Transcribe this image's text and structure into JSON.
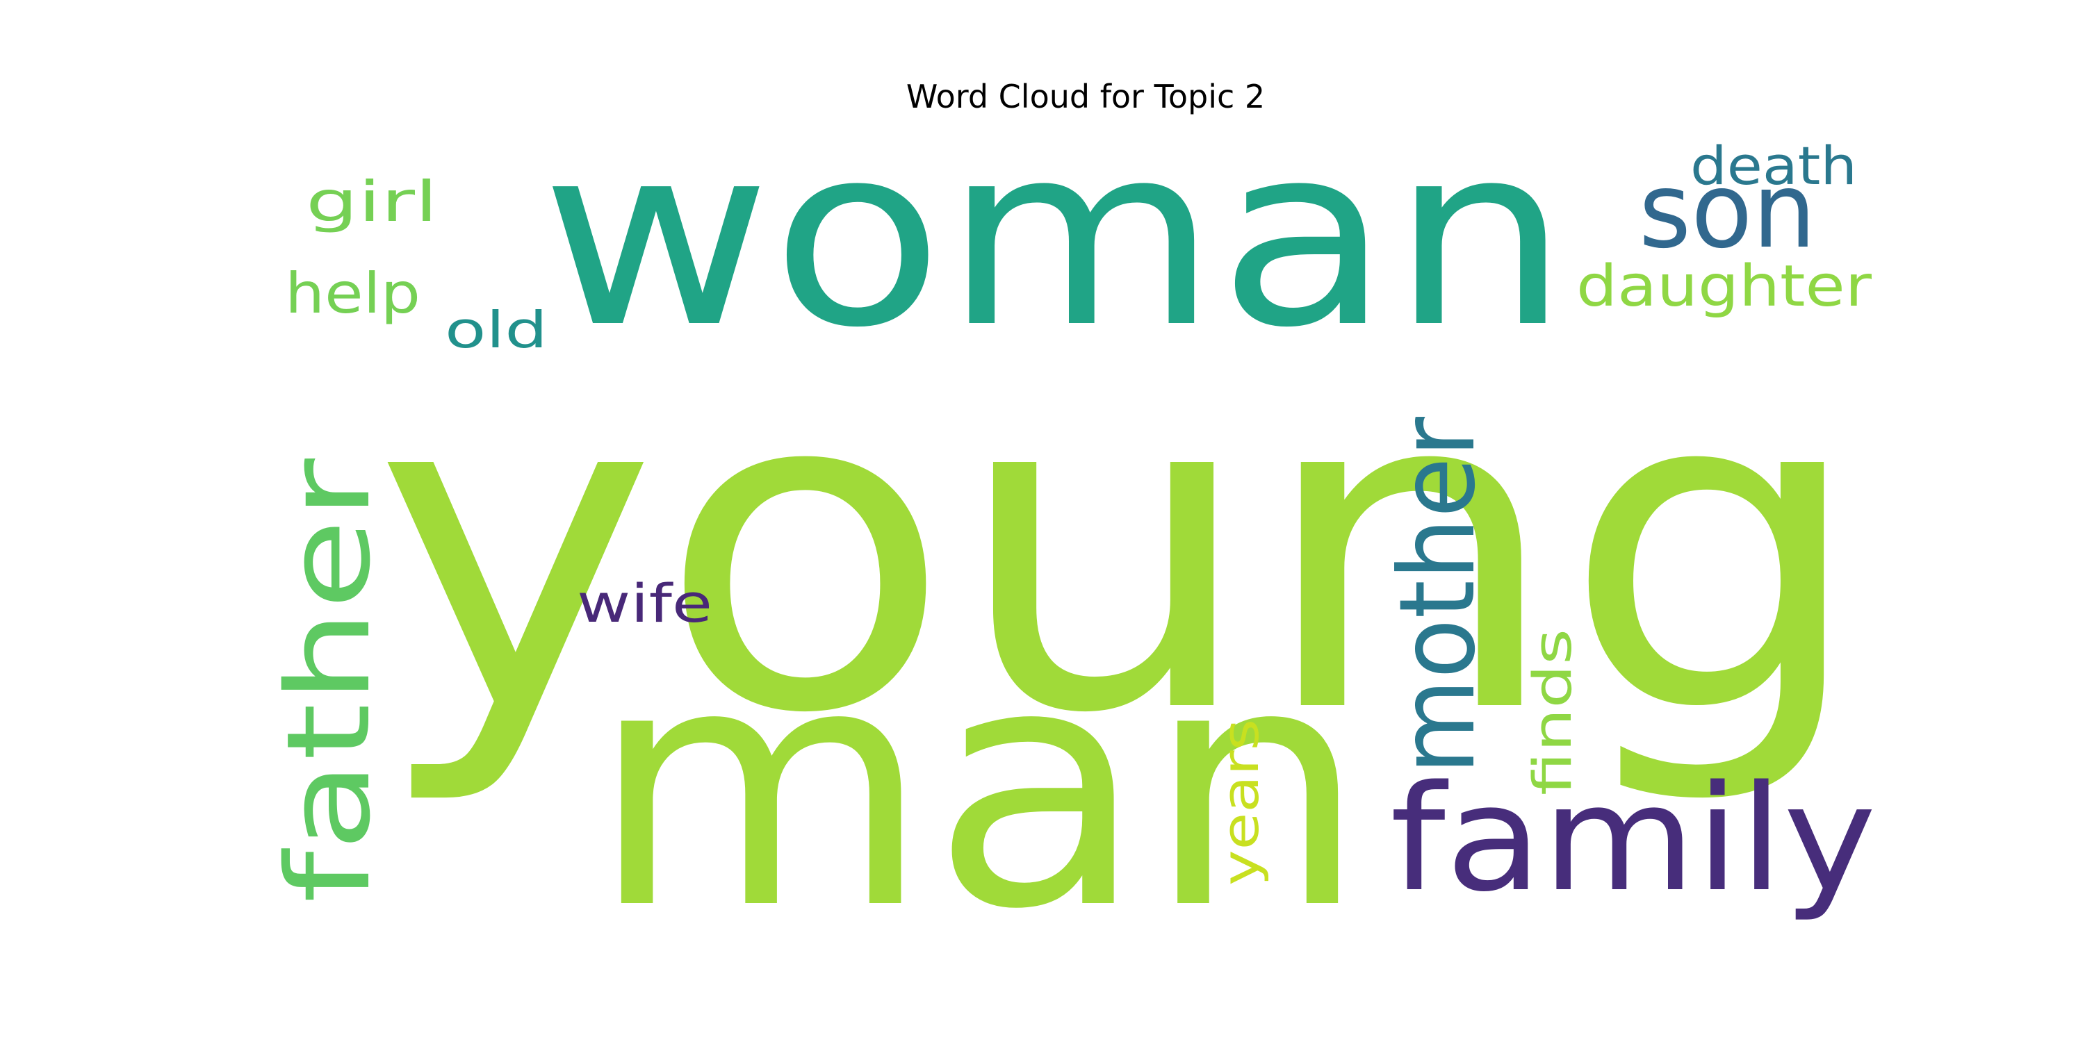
{
  "title": "Word Cloud for Topic 2",
  "colors": {
    "background": "#ffffff",
    "title": "#000000"
  },
  "words": [
    {
      "text": "young",
      "color": "#a0da39"
    },
    {
      "text": "woman",
      "color": "#20a486"
    },
    {
      "text": "man",
      "color": "#a0da39"
    },
    {
      "text": "family",
      "color": "#472d7b"
    },
    {
      "text": "son",
      "color": "#31688e"
    },
    {
      "text": "father",
      "color": "#5ec962"
    },
    {
      "text": "mother",
      "color": "#2a788e"
    },
    {
      "text": "daughter",
      "color": "#8fd744"
    },
    {
      "text": "death",
      "color": "#2a788e"
    },
    {
      "text": "girl",
      "color": "#75d054"
    },
    {
      "text": "help",
      "color": "#75d054"
    },
    {
      "text": "old",
      "color": "#21918c"
    },
    {
      "text": "wife",
      "color": "#482878"
    },
    {
      "text": "finds",
      "color": "#8fd744"
    },
    {
      "text": "years",
      "color": "#c8e020"
    }
  ]
}
